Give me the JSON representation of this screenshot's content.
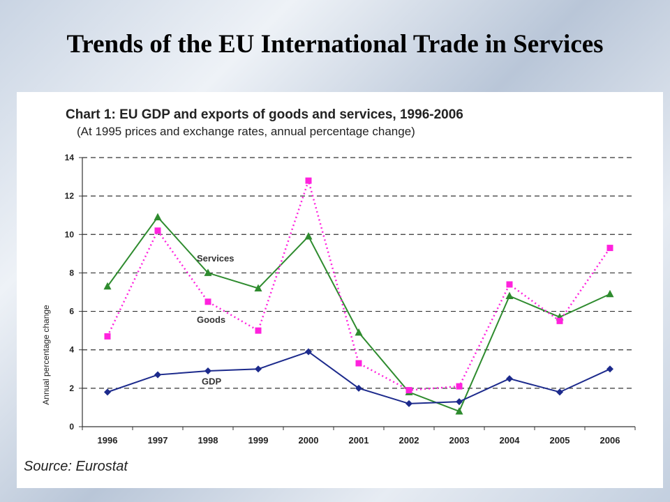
{
  "slide": {
    "title": "Trends of the EU International Trade in Services",
    "source": "Source: Eurostat"
  },
  "chart_data": {
    "type": "line",
    "title": "Chart 1: EU GDP and exports of goods and services, 1996-2006",
    "subtitle": "(At 1995 prices and exchange rates, annual percentage change)",
    "xlabel": "",
    "ylabel": "Annual percentage change",
    "ylim": [
      0,
      14
    ],
    "yticks": [
      0,
      2,
      4,
      6,
      8,
      10,
      12,
      14
    ],
    "categories": [
      "1996",
      "1997",
      "1998",
      "1999",
      "2000",
      "2001",
      "2002",
      "2003",
      "2004",
      "2005",
      "2006"
    ],
    "grid": "horizontal dashed",
    "series": [
      {
        "name": "Services",
        "color": "#2e8b2e",
        "marker": "triangle",
        "style": "solid",
        "values": [
          7.3,
          10.9,
          8.0,
          7.2,
          9.9,
          4.9,
          1.8,
          0.8,
          6.8,
          5.7,
          6.9
        ]
      },
      {
        "name": "Goods",
        "color": "#ff22dd",
        "marker": "square",
        "style": "dotted",
        "values": [
          4.7,
          10.2,
          6.5,
          5.0,
          12.8,
          3.3,
          1.9,
          2.1,
          7.4,
          5.5,
          9.3
        ]
      },
      {
        "name": "GDP",
        "color": "#1c2a8c",
        "marker": "diamond",
        "style": "solid",
        "values": [
          1.8,
          2.7,
          2.9,
          3.0,
          3.9,
          2.0,
          1.2,
          1.3,
          2.5,
          1.8,
          3.0
        ]
      }
    ]
  }
}
